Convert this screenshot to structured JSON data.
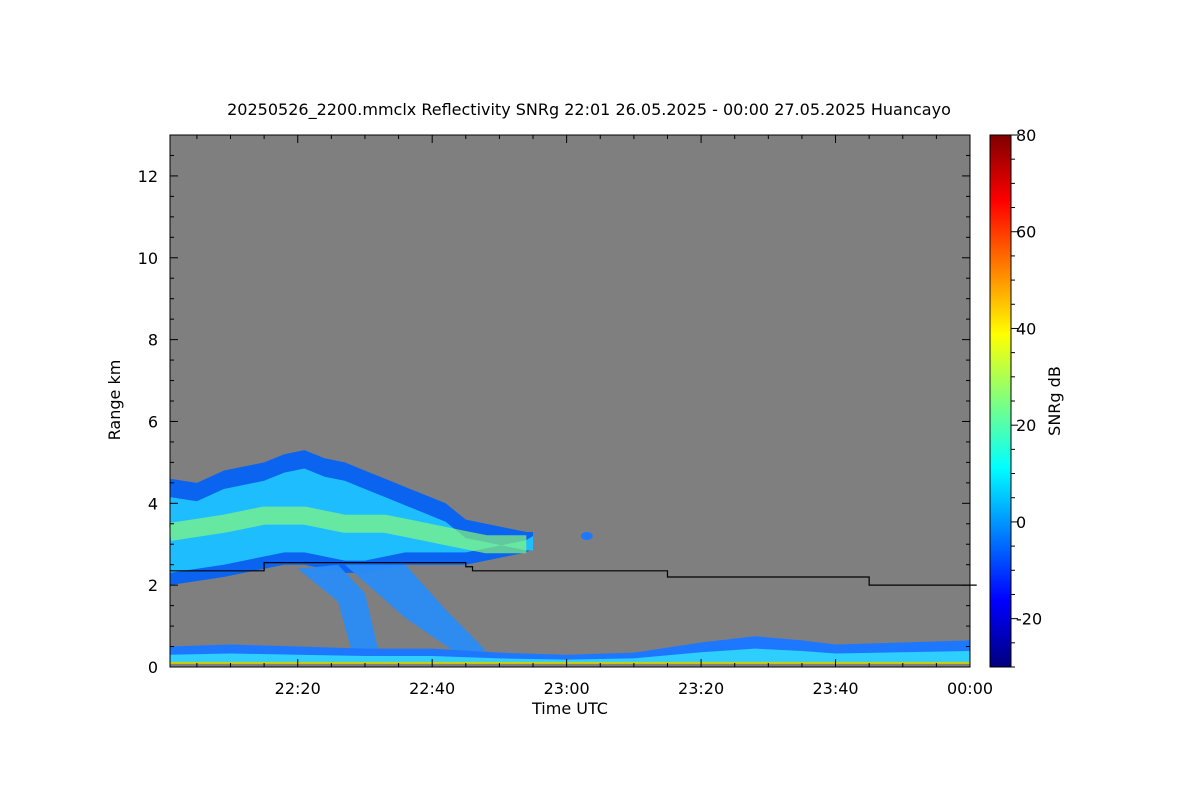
{
  "chart_data": {
    "type": "heatmap",
    "title": "20250526_2200.mmclx Reflectivity SNRg   22:01 26.05.2025 - 00:00 27.05.2025 Huancayo",
    "xlabel": "Time UTC",
    "ylabel": "Range km",
    "colorbar_label": "SNRg dB",
    "x_tick_labels": [
      "22:20",
      "22:40",
      "23:00",
      "23:20",
      "23:40",
      "00:00"
    ],
    "x_tick_minutes": [
      20,
      40,
      60,
      80,
      100,
      120
    ],
    "xlim_minutes": [
      1,
      120
    ],
    "y_ticks": [
      0,
      2,
      4,
      6,
      8,
      10,
      12
    ],
    "y_tick_labels": [
      "0",
      "2",
      "4",
      "6",
      "8",
      "10",
      "12"
    ],
    "ylim": [
      0,
      13
    ],
    "colorbar_ticks": [
      -20,
      0,
      20,
      40,
      60,
      80
    ],
    "colorbar_tick_labels": [
      "-20",
      "0",
      "20",
      "40",
      "60",
      "80"
    ],
    "colorbar_range": [
      -30,
      80
    ],
    "background_color": "#7f7f7f",
    "colormap": [
      "#00007f",
      "#0000ff",
      "#007fff",
      "#00ffff",
      "#7fff7f",
      "#ffff00",
      "#ff7f00",
      "#ff0000",
      "#7f0000"
    ],
    "cloud_top_km": [
      [
        1,
        4.6
      ],
      [
        5,
        4.5
      ],
      [
        9,
        4.8
      ],
      [
        12,
        4.9
      ],
      [
        15,
        5.0
      ],
      [
        18,
        5.2
      ],
      [
        21,
        5.3
      ],
      [
        24,
        5.1
      ],
      [
        27,
        5.0
      ],
      [
        30,
        4.8
      ],
      [
        33,
        4.6
      ],
      [
        36,
        4.4
      ],
      [
        39,
        4.2
      ],
      [
        42,
        4.0
      ],
      [
        45,
        3.6
      ],
      [
        48,
        3.5
      ],
      [
        51,
        3.4
      ],
      [
        54,
        3.3
      ],
      [
        55,
        3.3
      ]
    ],
    "cloud_base_km": [
      [
        1,
        2.0
      ],
      [
        5,
        2.1
      ],
      [
        9,
        2.2
      ],
      [
        12,
        2.3
      ],
      [
        15,
        2.4
      ],
      [
        18,
        2.5
      ],
      [
        21,
        2.5
      ],
      [
        24,
        2.4
      ],
      [
        27,
        2.3
      ],
      [
        30,
        2.3
      ],
      [
        33,
        2.4
      ],
      [
        36,
        2.5
      ],
      [
        39,
        2.5
      ],
      [
        42,
        2.5
      ],
      [
        45,
        2.5
      ],
      [
        48,
        2.6
      ],
      [
        51,
        2.7
      ],
      [
        54,
        2.8
      ],
      [
        55,
        2.9
      ]
    ],
    "cloud_core_km": [
      [
        1,
        3.3
      ],
      [
        5,
        3.4
      ],
      [
        9,
        3.5
      ],
      [
        12,
        3.6
      ],
      [
        15,
        3.7
      ],
      [
        18,
        3.7
      ],
      [
        21,
        3.7
      ],
      [
        24,
        3.6
      ],
      [
        27,
        3.5
      ],
      [
        30,
        3.5
      ],
      [
        33,
        3.5
      ],
      [
        36,
        3.4
      ],
      [
        39,
        3.3
      ],
      [
        42,
        3.2
      ],
      [
        45,
        3.1
      ],
      [
        48,
        3.0
      ],
      [
        51,
        3.0
      ],
      [
        54,
        3.0
      ]
    ],
    "virga_band_1": [
      [
        20,
        2.4
      ],
      [
        26,
        1.6
      ],
      [
        28,
        0.4
      ],
      [
        32,
        0.4
      ],
      [
        30,
        1.8
      ],
      [
        26,
        2.5
      ]
    ],
    "virga_band_2": [
      [
        27,
        2.5
      ],
      [
        36,
        1.2
      ],
      [
        44,
        0.3
      ],
      [
        48,
        0.4
      ],
      [
        42,
        1.4
      ],
      [
        36,
        2.5
      ]
    ],
    "small_echo": [
      [
        63,
        3.2
      ]
    ],
    "boundary_layer_km": [
      [
        1,
        0.5
      ],
      [
        10,
        0.55
      ],
      [
        20,
        0.5
      ],
      [
        30,
        0.45
      ],
      [
        40,
        0.45
      ],
      [
        50,
        0.35
      ],
      [
        60,
        0.3
      ],
      [
        70,
        0.35
      ],
      [
        80,
        0.6
      ],
      [
        88,
        0.75
      ],
      [
        95,
        0.65
      ],
      [
        100,
        0.55
      ],
      [
        110,
        0.6
      ],
      [
        120,
        0.65
      ]
    ],
    "step_line": {
      "x_minutes": [
        1,
        15,
        15,
        45,
        45,
        46,
        46,
        75,
        75,
        105,
        105,
        121
      ],
      "y_km": [
        2.35,
        2.35,
        2.55,
        2.55,
        2.45,
        2.45,
        2.35,
        2.35,
        2.2,
        2.2,
        2.0,
        2.0
      ],
      "color": "#000000"
    }
  }
}
